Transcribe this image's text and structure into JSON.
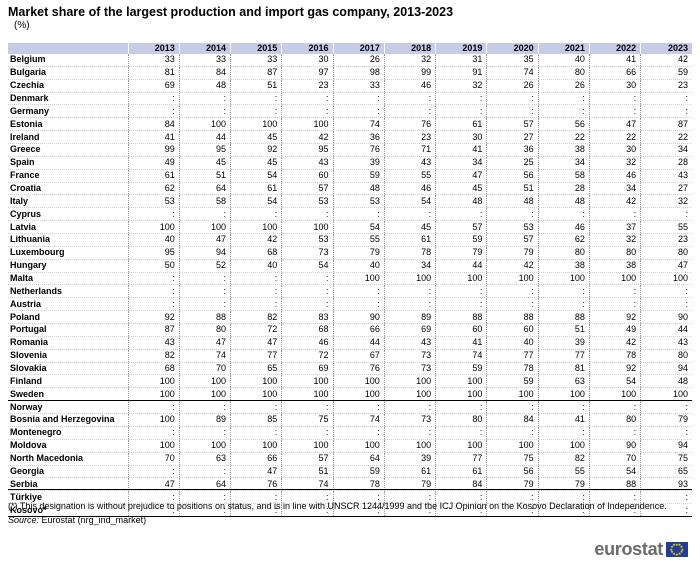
{
  "title": "Market share of the largest production and import gas company, 2013-2023",
  "subtitle": "(%)",
  "table": {
    "columns": [
      "2013",
      "2014",
      "2015",
      "2016",
      "2017",
      "2018",
      "2019",
      "2020",
      "2021",
      "2022",
      "2023"
    ],
    "rows": [
      {
        "country": "Belgium",
        "values": [
          "33",
          "33",
          "33",
          "30",
          "26",
          "32",
          "31",
          "35",
          "40",
          "41",
          "42"
        ]
      },
      {
        "country": "Bulgaria",
        "values": [
          "81",
          "84",
          "87",
          "97",
          "98",
          "99",
          "91",
          "74",
          "80",
          "66",
          "59"
        ]
      },
      {
        "country": "Czechia",
        "values": [
          "69",
          "48",
          "51",
          "23",
          "33",
          "46",
          "32",
          "26",
          "26",
          "30",
          "23"
        ]
      },
      {
        "country": "Denmark",
        "values": [
          ":",
          ":",
          ":",
          ":",
          ":",
          ":",
          ":",
          ":",
          ":",
          ":",
          ":"
        ]
      },
      {
        "country": "Germany",
        "values": [
          ":",
          ":",
          ":",
          ":",
          ":",
          ":",
          ":",
          ":",
          ":",
          ":",
          ":"
        ]
      },
      {
        "country": "Estonia",
        "values": [
          "84",
          "100",
          "100",
          "100",
          "74",
          "76",
          "61",
          "57",
          "56",
          "47",
          "87"
        ]
      },
      {
        "country": "Ireland",
        "values": [
          "41",
          "44",
          "45",
          "42",
          "36",
          "23",
          "30",
          "27",
          "22",
          "22",
          "22"
        ]
      },
      {
        "country": "Greece",
        "values": [
          "99",
          "95",
          "92",
          "95",
          "76",
          "71",
          "41",
          "36",
          "38",
          "30",
          "34"
        ]
      },
      {
        "country": "Spain",
        "values": [
          "49",
          "45",
          "45",
          "43",
          "39",
          "43",
          "34",
          "25",
          "34",
          "32",
          "28"
        ]
      },
      {
        "country": "France",
        "values": [
          "61",
          "51",
          "54",
          "60",
          "59",
          "55",
          "47",
          "56",
          "58",
          "46",
          "43"
        ]
      },
      {
        "country": "Croatia",
        "values": [
          "62",
          "64",
          "61",
          "57",
          "48",
          "46",
          "45",
          "51",
          "28",
          "34",
          "27"
        ]
      },
      {
        "country": "Italy",
        "values": [
          "53",
          "58",
          "54",
          "53",
          "53",
          "54",
          "48",
          "48",
          "48",
          "42",
          "32"
        ]
      },
      {
        "country": "Cyprus",
        "values": [
          ":",
          ":",
          ":",
          ":",
          ":",
          ":",
          ":",
          ":",
          ":",
          ":",
          ":"
        ]
      },
      {
        "country": "Latvia",
        "values": [
          "100",
          "100",
          "100",
          "100",
          "54",
          "45",
          "57",
          "53",
          "46",
          "37",
          "55"
        ]
      },
      {
        "country": "Lithuania",
        "values": [
          "40",
          "47",
          "42",
          "53",
          "55",
          "61",
          "59",
          "57",
          "62",
          "32",
          "23"
        ]
      },
      {
        "country": "Luxembourg",
        "values": [
          "95",
          "94",
          "68",
          "73",
          "79",
          "78",
          "79",
          "79",
          "80",
          "80",
          "80"
        ]
      },
      {
        "country": "Hungary",
        "values": [
          "50",
          "52",
          "40",
          "54",
          "40",
          "34",
          "44",
          "42",
          "38",
          "38",
          "47"
        ]
      },
      {
        "country": "Malta",
        "values": [
          ":",
          ":",
          ":",
          ":",
          "100",
          "100",
          "100",
          "100",
          "100",
          "100",
          "100"
        ]
      },
      {
        "country": "Netherlands",
        "values": [
          ":",
          ":",
          ":",
          ":",
          ":",
          ":",
          ":",
          ":",
          ":",
          ":",
          ":"
        ]
      },
      {
        "country": "Austria",
        "values": [
          ":",
          ":",
          ":",
          ":",
          ":",
          ":",
          ":",
          ":",
          ":",
          ":",
          ":"
        ]
      },
      {
        "country": "Poland",
        "values": [
          "92",
          "88",
          "82",
          "83",
          "90",
          "89",
          "88",
          "88",
          "88",
          "92",
          "90"
        ]
      },
      {
        "country": "Portugal",
        "values": [
          "87",
          "80",
          "72",
          "68",
          "66",
          "69",
          "60",
          "60",
          "51",
          "49",
          "44"
        ]
      },
      {
        "country": "Romania",
        "values": [
          "43",
          "47",
          "47",
          "46",
          "44",
          "43",
          "41",
          "40",
          "39",
          "42",
          "43"
        ]
      },
      {
        "country": "Slovenia",
        "values": [
          "82",
          "74",
          "77",
          "72",
          "67",
          "73",
          "74",
          "77",
          "77",
          "78",
          "80"
        ]
      },
      {
        "country": "Slovakia",
        "values": [
          "68",
          "70",
          "65",
          "69",
          "76",
          "73",
          "59",
          "78",
          "81",
          "92",
          "94"
        ]
      },
      {
        "country": "Finland",
        "values": [
          "100",
          "100",
          "100",
          "100",
          "100",
          "100",
          "100",
          "59",
          "63",
          "54",
          "48"
        ]
      },
      {
        "country": "Sweden",
        "values": [
          "100",
          "100",
          "100",
          "100",
          "100",
          "100",
          "100",
          "100",
          "100",
          "100",
          "100"
        ]
      },
      {
        "country": "Norway",
        "values": [
          ":",
          ":",
          ":",
          ":",
          ":",
          ":",
          ":",
          ":",
          ":",
          ":",
          ":"
        ]
      },
      {
        "country": "Bosnia and Herzegovina",
        "values": [
          "100",
          "89",
          "85",
          "75",
          "74",
          "73",
          "80",
          "84",
          "41",
          "80",
          "79"
        ]
      },
      {
        "country": "Montenegro",
        "values": [
          ":",
          ":",
          ":",
          ":",
          ":",
          ":",
          ":",
          ":",
          ":",
          ":",
          ":"
        ]
      },
      {
        "country": "Moldova",
        "values": [
          "100",
          "100",
          "100",
          "100",
          "100",
          "100",
          "100",
          "100",
          "100",
          "90",
          "94"
        ]
      },
      {
        "country": "North Macedonia",
        "values": [
          "70",
          "63",
          "66",
          "57",
          "64",
          "39",
          "77",
          "75",
          "82",
          "70",
          "75"
        ]
      },
      {
        "country": "Georgia",
        "values": [
          ":",
          ":",
          "47",
          "51",
          "59",
          "61",
          "61",
          "56",
          "55",
          "54",
          "65"
        ]
      },
      {
        "country": "Serbia",
        "values": [
          "47",
          "64",
          "76",
          "74",
          "78",
          "79",
          "84",
          "79",
          "79",
          "88",
          "93"
        ]
      },
      {
        "country": "Türkiye",
        "values": [
          ":",
          ":",
          ":",
          ":",
          ":",
          ":",
          ":",
          ":",
          ":",
          ":",
          ":"
        ]
      },
      {
        "country": "Kosovo*",
        "values": [
          ":",
          ":",
          ":",
          ":",
          ":",
          ":",
          ":",
          ":",
          ":",
          ":",
          ":"
        ]
      }
    ]
  },
  "footnote": "(*) This designation is without prejudice to positions on status, and is in line with UNSCR 1244/1999 and the ICJ Opinion on the Kosovo Declaration of Independence.",
  "source": {
    "label": "Source:",
    "text": "Eurostat (nrg_ind_market)"
  },
  "logo": {
    "text": "eurostat",
    "icon": "eu-flag-icon",
    "flag_color": "#1f3d99",
    "star_color": "#ffd200"
  }
}
